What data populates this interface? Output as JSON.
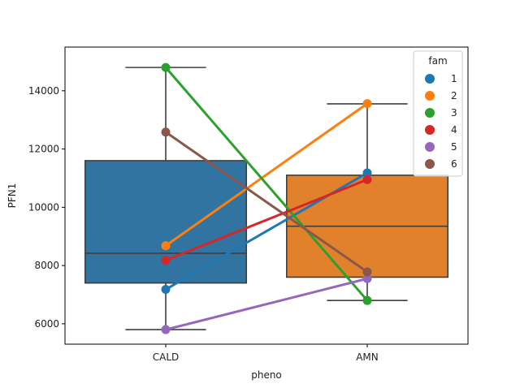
{
  "chart_data": {
    "type": "box",
    "title": "",
    "xlabel": "pheno",
    "ylabel": "PFN1",
    "ylim": [
      5300,
      15500
    ],
    "yticks": [
      6000,
      8000,
      10000,
      12000,
      14000
    ],
    "ytick_labels": [
      "6000",
      "8000",
      "10000",
      "12000",
      "14000"
    ],
    "categories": [
      "CALD",
      "AMN"
    ],
    "boxes": [
      {
        "category": "CALD",
        "whisker_low": 5800,
        "q1": 7400,
        "median": 8420,
        "q3": 11600,
        "whisker_high": 14800,
        "color": "#3274a1"
      },
      {
        "category": "AMN",
        "whisker_low": 6800,
        "q1": 7600,
        "median": 9350,
        "q3": 11100,
        "whisker_high": 13550,
        "color": "#e1812c"
      }
    ],
    "legend": {
      "title": "fam",
      "position": "top-right"
    },
    "series": [
      {
        "name": "1",
        "color": "#1f77b4",
        "values": [
          7180,
          11180
        ]
      },
      {
        "name": "2",
        "color": "#ff7f0e",
        "values": [
          8680,
          13560
        ]
      },
      {
        "name": "3",
        "color": "#2ca02c",
        "values": [
          14800,
          6800
        ]
      },
      {
        "name": "4",
        "color": "#d62728",
        "values": [
          8180,
          10950
        ]
      },
      {
        "name": "5",
        "color": "#9467bd",
        "values": [
          5800,
          7550
        ]
      },
      {
        "name": "6",
        "color": "#8c564b",
        "values": [
          12580,
          7780
        ]
      }
    ]
  }
}
